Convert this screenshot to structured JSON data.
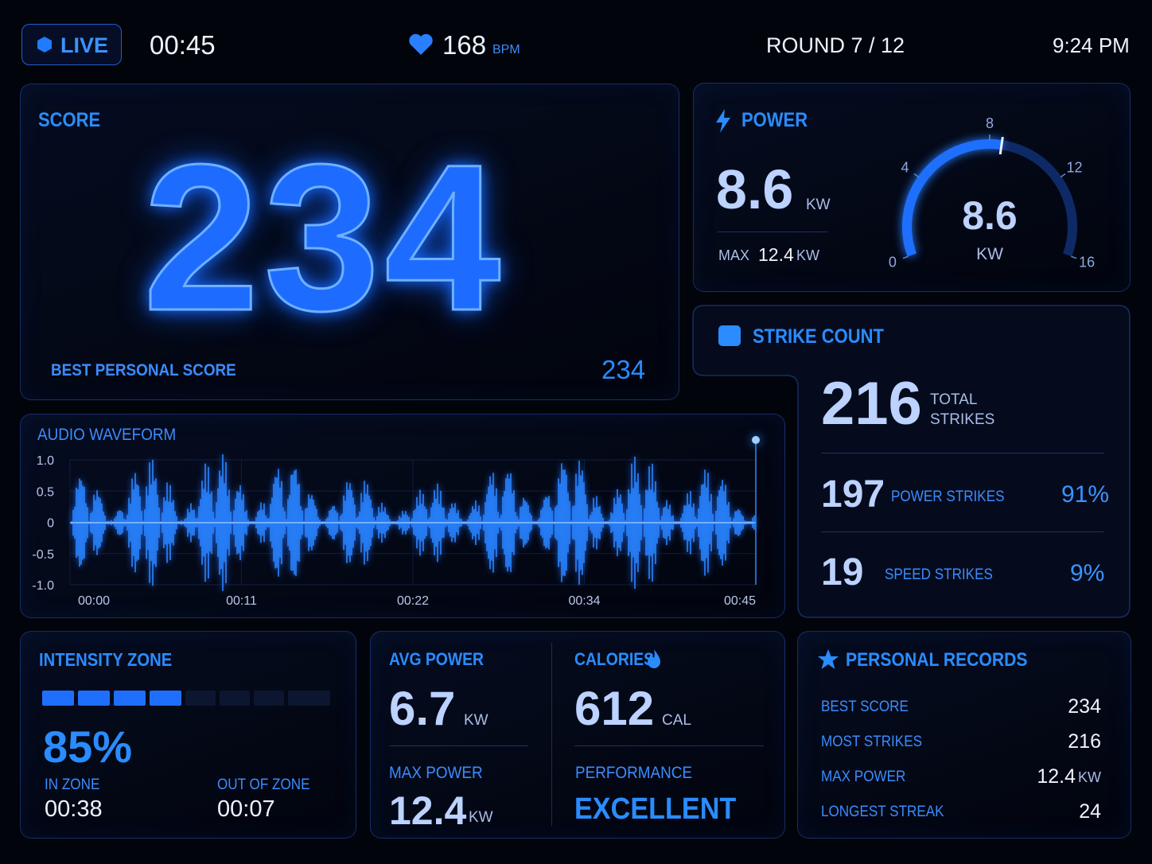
{
  "header": {
    "live": "LIVE",
    "timer": "00:45",
    "heart_rate": "168",
    "heart_unit": "BPM",
    "round": "ROUND 7 / 12",
    "clock": "9:24 PM"
  },
  "score": {
    "title": "SCORE",
    "value": "234",
    "best_label": "BEST PERSONAL SCORE",
    "best_value": "234"
  },
  "power": {
    "title": "POWER",
    "value": "8.6",
    "unit": "KW",
    "max_label": "MAX",
    "max_value": "12.4",
    "max_unit": "KW",
    "gauge": {
      "value": 8.6,
      "unit": "KW",
      "min": 0,
      "max": 16,
      "ticks": [
        0,
        4,
        8,
        12,
        16
      ]
    }
  },
  "strikes": {
    "title": "STRIKE COUNT",
    "total": "216",
    "total_label": "TOTAL STRIKES",
    "rows": [
      {
        "count": "197",
        "label": "POWER STRIKES",
        "percent": "91%"
      },
      {
        "count": "19",
        "label": "SPEED STRIKES",
        "percent": "9%"
      }
    ]
  },
  "waveform": {
    "title": "AUDIO WAVEFORM",
    "yticks": [
      {
        "value": 1,
        "label": "1.0"
      },
      0.5,
      0,
      -0.5,
      {
        "value": -1,
        "label": "-1.0"
      }
    ],
    "xticks": [
      "00:00",
      "00:11",
      "00:22",
      "00:34",
      "00:45"
    ]
  },
  "intensity": {
    "title": "INTENSITY ZONE",
    "value": "85%",
    "in_label": "IN ZONE",
    "in_time": "00:38",
    "out_label": "OUT OF ZONE",
    "out_time": "00:07"
  },
  "averages": {
    "avg_label": "AVG POWER",
    "avg_value": "6.7",
    "avg_unit": "KW",
    "max_label": "MAX POWER",
    "max_value": "12.4",
    "max_unit": "KW"
  },
  "calories": {
    "title": "CALORIES",
    "value": "612",
    "unit": "CAL",
    "performance_label": "PERFORMANCE",
    "performance": "EXCELLENT"
  },
  "records": {
    "title": "PERSONAL RECORDS",
    "rows": [
      {
        "label": "BEST SCORE",
        "value": "234"
      },
      {
        "label": "MOST STRIKES",
        "value": "216"
      },
      {
        "label": "MAX POWER",
        "value": "12.4",
        "unit": "KW"
      },
      {
        "label": "LONGEST STREAK",
        "value": "24"
      }
    ]
  }
}
